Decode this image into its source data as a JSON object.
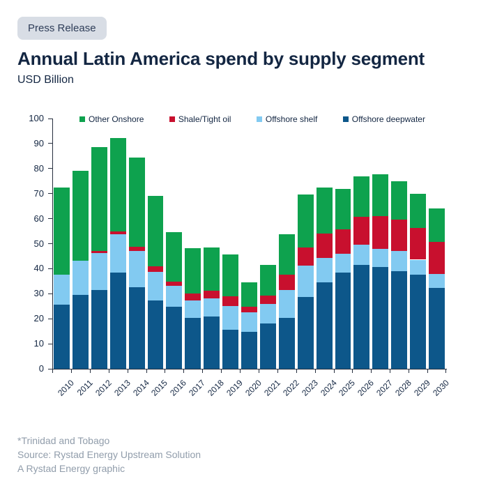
{
  "badge": {
    "label": "Press Release"
  },
  "header": {
    "title": "Annual Latin America spend by supply segment",
    "subtitle": "USD Billion"
  },
  "footer": {
    "lines": [
      "*Trinidad and Tobago",
      "Source: Rystad Energy Upstream Solution",
      "A Rystad Energy graphic"
    ]
  },
  "colors": {
    "green": "#0ea24e",
    "red": "#c8102e",
    "light_blue": "#82caf1",
    "dark_blue": "#0d578a",
    "navy_text": "#132642",
    "footer_gray": "#919dab",
    "badge_bg": "#d8dde5",
    "axis": "#252e3d"
  },
  "chart_data": {
    "type": "bar",
    "stacked": true,
    "title": "Annual Latin America spend by supply segment",
    "ylabel": "USD Billion",
    "xlabel": "",
    "ylim": [
      0,
      100
    ],
    "ytick_step": 10,
    "grid": false,
    "legend_position": "top",
    "legend_order": [
      "Other Onshore",
      "Shale/Tight oil",
      "Offshore shelf",
      "Offshore deepwater"
    ],
    "categories": [
      "2010",
      "2011",
      "2012",
      "2013",
      "2014",
      "2015",
      "2016",
      "2017",
      "2018",
      "2019",
      "2020",
      "2021",
      "2022",
      "2023",
      "2024",
      "2025",
      "2026",
      "2027",
      "2028",
      "2029",
      "2030"
    ],
    "series": [
      {
        "name": "Offshore deepwater",
        "color": "#0d578a",
        "values": [
          25.5,
          29.5,
          31.5,
          38.5,
          32.5,
          27.2,
          24.7,
          20.2,
          21.0,
          15.5,
          14.7,
          18.2,
          20.4,
          28.7,
          34.5,
          38.4,
          41.4,
          40.8,
          39.1,
          37.7,
          32.4
        ]
      },
      {
        "name": "Offshore shelf",
        "color": "#82caf1",
        "values": [
          12.0,
          13.7,
          14.8,
          15.2,
          14.7,
          11.4,
          8.5,
          7.0,
          7.2,
          9.6,
          7.9,
          7.7,
          11.1,
          12.6,
          9.9,
          7.7,
          8.1,
          7.2,
          8.0,
          5.9,
          5.6
        ]
      },
      {
        "name": "Shale/Tight oil",
        "color": "#c8102e",
        "values": [
          0.0,
          0.0,
          0.9,
          1.3,
          1.5,
          2.4,
          1.5,
          2.8,
          3.1,
          3.8,
          2.3,
          3.4,
          6.0,
          7.2,
          9.7,
          9.7,
          11.1,
          13.1,
          12.6,
          12.8,
          12.8
        ]
      },
      {
        "name": "Other Onshore",
        "color": "#0ea24e",
        "values": [
          35.0,
          35.8,
          41.3,
          37.3,
          35.8,
          28.0,
          19.8,
          18.2,
          17.2,
          16.8,
          9.6,
          12.1,
          16.4,
          21.2,
          18.4,
          16.1,
          16.3,
          16.6,
          15.2,
          13.6,
          13.2
        ]
      }
    ],
    "totals": [
      72.5,
      79.0,
      88.5,
      92.3,
      84.5,
      69.0,
      54.5,
      48.2,
      48.5,
      45.7,
      34.5,
      41.4,
      53.9,
      69.7,
      72.5,
      71.9,
      76.9,
      77.7,
      74.9,
      70.0,
      64.0
    ]
  }
}
